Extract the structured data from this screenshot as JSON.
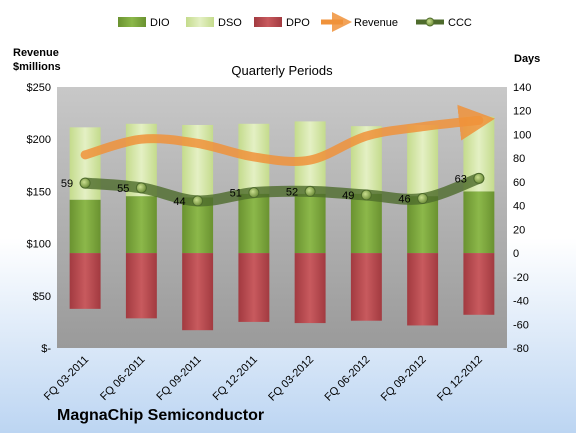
{
  "chart_data": {
    "type": "bar",
    "subtitle": "Quarterly Periods",
    "company": "MagnaChip Semiconductor",
    "left_axis_title_line1": "Revenue",
    "left_axis_title_line2": "$millions",
    "right_axis_title": "Days",
    "categories": [
      "FQ 03-2011",
      "FQ 06-2011",
      "FQ 09-2011",
      "FQ 12-2011",
      "FQ 03-2012",
      "FQ 06-2012",
      "FQ 09-2012",
      "FQ 12-2012"
    ],
    "left_axis": {
      "min": 0,
      "max": 250,
      "step": 50,
      "tick_labels": [
        "$-",
        "$50",
        "$100",
        "$150",
        "$200",
        "$250"
      ]
    },
    "right_axis": {
      "min": -80,
      "max": 140,
      "step": 20
    },
    "series": [
      {
        "name": "DIO",
        "kind": "stacked-bar-up",
        "color": "#7aa33a",
        "values": [
          45,
          48,
          47,
          50,
          50,
          50,
          48,
          52
        ]
      },
      {
        "name": "DSO",
        "kind": "stacked-bar-up",
        "color": "#d3e6a4",
        "values": [
          61,
          61,
          61,
          59,
          61,
          57,
          60,
          63
        ]
      },
      {
        "name": "DPO",
        "kind": "bar-down",
        "color": "#b8474c",
        "values": [
          47,
          55,
          65,
          58,
          59,
          57,
          61,
          52
        ]
      },
      {
        "name": "Revenue",
        "kind": "line",
        "axis": "left",
        "color": "#f0923a",
        "values": [
          185,
          200,
          196,
          183,
          180,
          203,
          212,
          218
        ]
      },
      {
        "name": "CCC",
        "kind": "line",
        "axis": "right",
        "color": "#4e6b2c",
        "values": [
          59,
          55,
          44,
          51,
          52,
          49,
          46,
          63
        ]
      }
    ],
    "data_labels": [
      "59",
      "55",
      "44",
      "51",
      "52",
      "49",
      "46",
      "63"
    ],
    "legend": {
      "placement": "top",
      "items": [
        "DIO",
        "DSO",
        "DPO",
        "Revenue",
        "CCC"
      ]
    },
    "grid": false
  }
}
